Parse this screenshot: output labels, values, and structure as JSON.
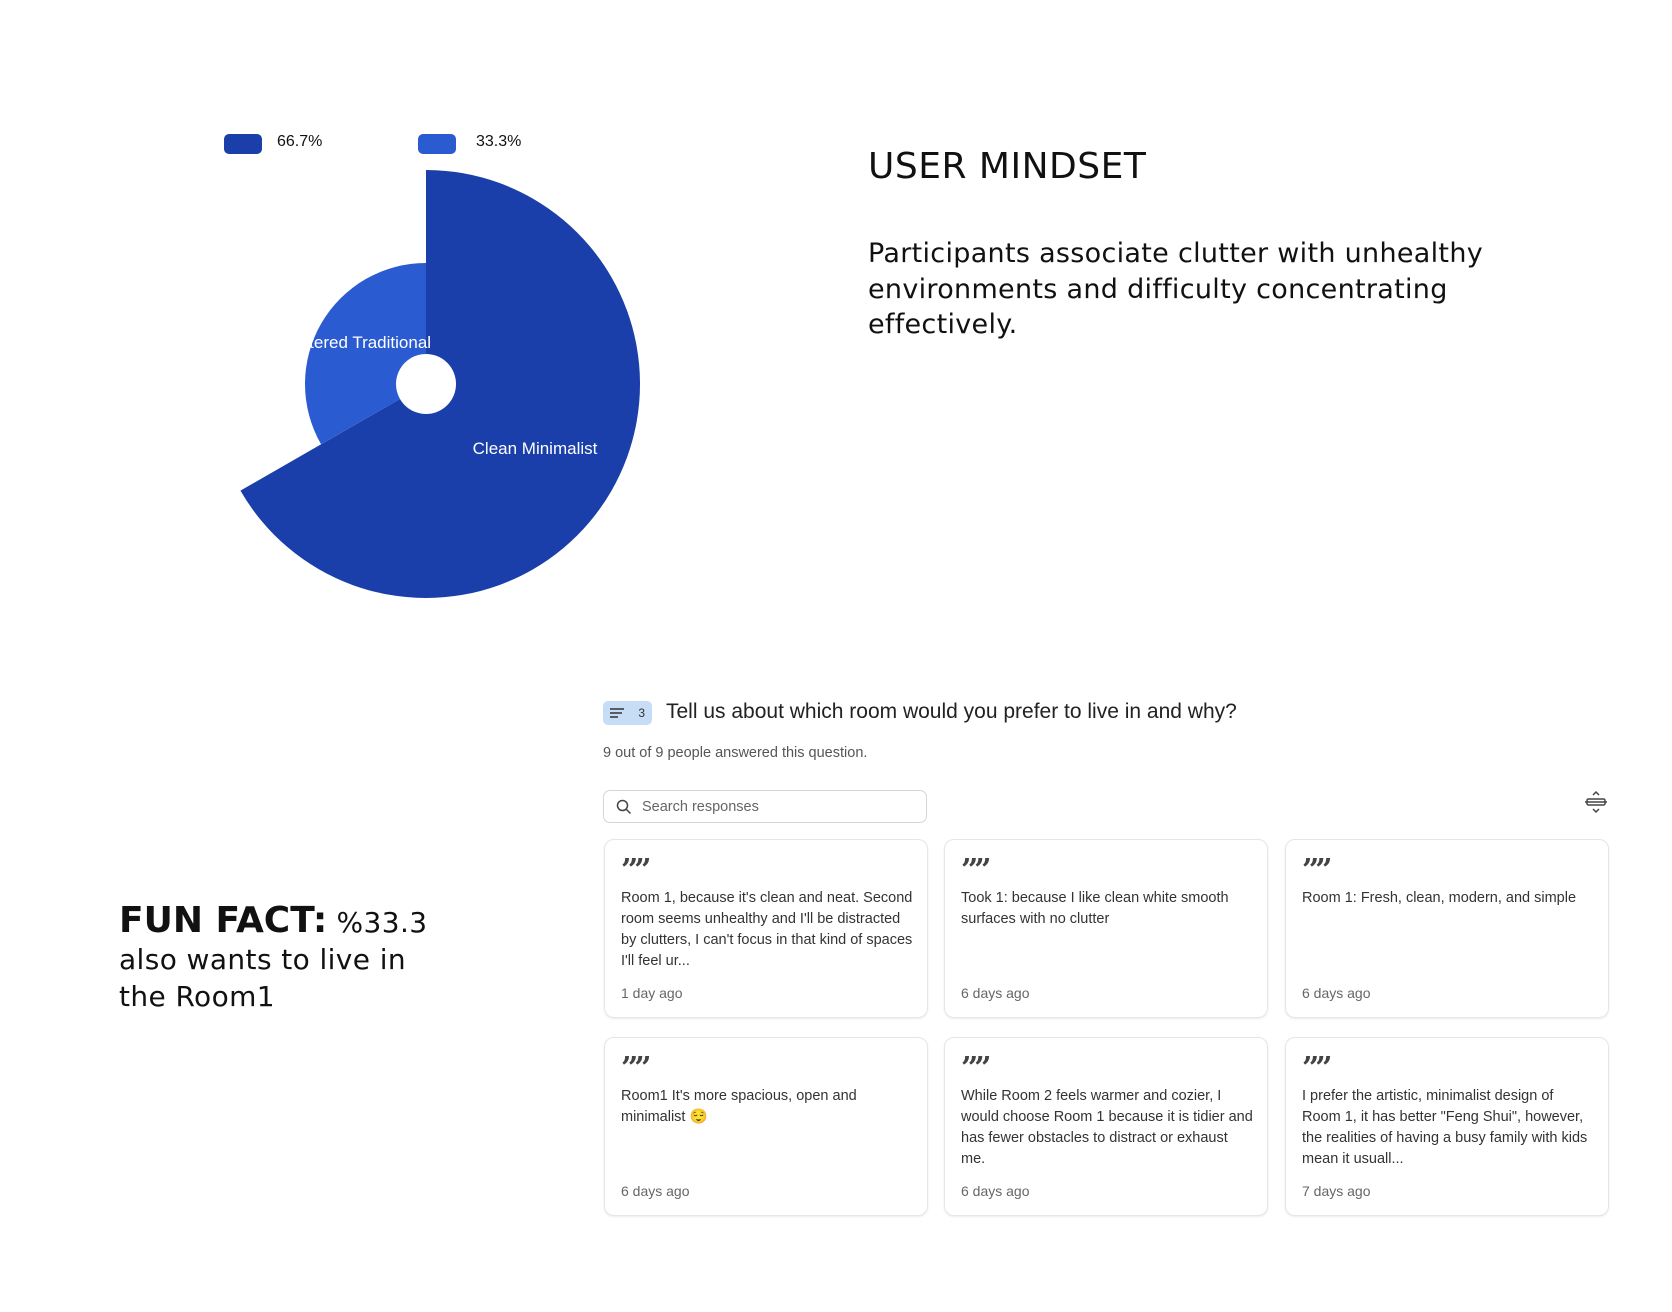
{
  "chart_data": {
    "type": "pie",
    "categories": [
      "Clean Minimalist",
      "Cluttered Traditional"
    ],
    "values": [
      66.7,
      33.3
    ],
    "legend": [
      "66.7%",
      "33.3%"
    ],
    "legend_placement": "top",
    "colors": [
      "#1a3faa",
      "#2a5bd1"
    ],
    "radius_varies_by_value": true,
    "donut_hole": true
  },
  "mindset": {
    "title": "USER MINDSET",
    "body": "Participants associate clutter with unhealthy environments and difficulty concentrating effectively."
  },
  "fun_fact": {
    "label": "FUN FACT:",
    "value": "%33.3",
    "text": "also wants to live in the Room1"
  },
  "question": {
    "number": "3",
    "icon": "text-lines-icon",
    "text": "Tell us about which room would you prefer to live in and why?",
    "answered": "9 out of 9 people answered this question.",
    "search_placeholder": "Search responses"
  },
  "responses": [
    {
      "text": "Room 1, because it's clean and neat. Second room seems unhealthy and I'll be distracted by clutters, I can't focus in that kind of spaces I'll feel ur...",
      "time": "1 day ago"
    },
    {
      "text": "Took 1: because I like clean white smooth surfaces with no clutter",
      "time": "6 days ago"
    },
    {
      "text": "Room 1: Fresh, clean, modern, and simple",
      "time": "6 days ago"
    },
    {
      "text": "Room1 It's more spacious, open and minimalist 😌",
      "time": "6 days ago"
    },
    {
      "text": "While Room 2 feels warmer and cozier, I would choose Room 1 because it is tidier and has fewer obstacles to distract or exhaust me.",
      "time": "6 days ago"
    },
    {
      "text": "I prefer the artistic, minimalist design of Room 1, it has better \"Feng Shui\", however, the realities of having a busy family with kids mean it usuall...",
      "time": "7 days ago"
    }
  ]
}
